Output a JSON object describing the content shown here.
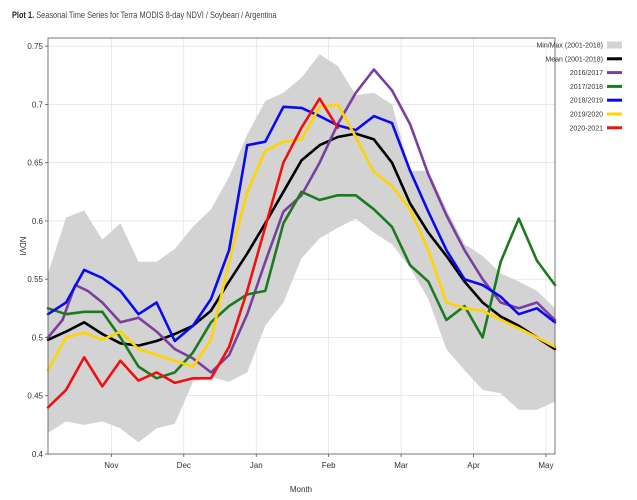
{
  "title": {
    "prefix": "Plot 1.",
    "text": "Seasonal Time Series for Terra MODIS 8-day NDVI / Soybean / Argentina"
  },
  "colors": {
    "band": "#d3d3d3",
    "mean": "#000000",
    "y2016_2017": "#7b3f9e",
    "y2017_2018": "#1e7a1e",
    "y2018_2019": "#0a0aee",
    "y2019_2020": "#ffd400",
    "y2020_2021": "#ee1111"
  },
  "chart_data": {
    "type": "line",
    "title": "Seasonal Time Series for Terra MODIS 8-day NDVI / Soybean / Argentina",
    "xlabel": "Month",
    "ylabel": "NDVI",
    "x_tick_labels": [
      "Nov",
      "Dec",
      "Jan",
      "Feb",
      "Mar",
      "Apr",
      "May"
    ],
    "y_tick_labels": [
      "0.4",
      "0.45",
      "0.5",
      "0.55",
      "0.6",
      "0.65",
      "0.7",
      "0.75"
    ],
    "ylim": [
      0.4,
      0.757
    ],
    "xlim": [
      0,
      28
    ],
    "x_ticks_at": [
      3.5,
      7.5,
      11.5,
      15.5,
      19.5,
      23.5,
      27.5
    ],
    "grid": true,
    "legend_position": "right",
    "band": {
      "name": "Min/Max (2001-2018)",
      "x": [
        0,
        1,
        2,
        3,
        4,
        5,
        6,
        7,
        8,
        9,
        10,
        11,
        12,
        13,
        14,
        15,
        16,
        17,
        18,
        19,
        20,
        21,
        22,
        23,
        24,
        25,
        26,
        27,
        28
      ],
      "min": [
        0.418,
        0.428,
        0.425,
        0.428,
        0.422,
        0.41,
        0.422,
        0.426,
        0.462,
        0.466,
        0.462,
        0.47,
        0.51,
        0.53,
        0.568,
        0.585,
        0.594,
        0.602,
        0.59,
        0.58,
        0.56,
        0.533,
        0.49,
        0.472,
        0.455,
        0.452,
        0.438,
        0.438,
        0.445
      ],
      "max": [
        0.555,
        0.603,
        0.609,
        0.584,
        0.598,
        0.565,
        0.565,
        0.576,
        0.595,
        0.61,
        0.638,
        0.674,
        0.703,
        0.71,
        0.723,
        0.743,
        0.733,
        0.708,
        0.71,
        0.7,
        0.643,
        0.643,
        0.61,
        0.58,
        0.57,
        0.555,
        0.548,
        0.54,
        0.525
      ]
    },
    "series": [
      {
        "name": "Mean (2001-2018)",
        "color_key": "mean",
        "x": [
          0,
          1,
          2,
          3,
          4,
          5,
          6,
          7,
          8,
          9,
          10,
          11,
          12,
          13,
          14,
          15,
          16,
          17,
          18,
          19,
          20,
          21,
          22,
          23,
          24,
          25,
          26,
          27,
          28
        ],
        "values": [
          0.498,
          0.505,
          0.513,
          0.503,
          0.495,
          0.493,
          0.497,
          0.503,
          0.51,
          0.523,
          0.548,
          0.572,
          0.598,
          0.625,
          0.652,
          0.665,
          0.672,
          0.675,
          0.67,
          0.65,
          0.615,
          0.59,
          0.57,
          0.548,
          0.53,
          0.518,
          0.51,
          0.5,
          0.49
        ]
      },
      {
        "name": "2016/2017",
        "color_key": "y2016_2017",
        "x": [
          0,
          0.8,
          1.5,
          2.2,
          3,
          4,
          5,
          6,
          7,
          8,
          9,
          10,
          11,
          12,
          13,
          14,
          15,
          16,
          17,
          18,
          19,
          20,
          21,
          22,
          23,
          24,
          25,
          26,
          27,
          28
        ],
        "values": [
          0.5,
          0.515,
          0.545,
          0.54,
          0.53,
          0.513,
          0.517,
          0.505,
          0.49,
          0.482,
          0.47,
          0.485,
          0.52,
          0.565,
          0.608,
          0.622,
          0.65,
          0.683,
          0.71,
          0.73,
          0.712,
          0.683,
          0.64,
          0.605,
          0.575,
          0.55,
          0.53,
          0.525,
          0.53,
          0.515
        ]
      },
      {
        "name": "2017/2018",
        "color_key": "y2017_2018",
        "x": [
          0,
          1,
          2,
          3,
          4,
          5,
          6,
          7,
          8,
          9,
          10,
          11,
          12,
          13,
          14,
          15,
          16,
          17,
          18,
          19,
          20,
          21,
          22,
          23,
          24,
          25,
          26,
          27,
          28
        ],
        "values": [
          0.525,
          0.52,
          0.522,
          0.522,
          0.5,
          0.475,
          0.465,
          0.47,
          0.487,
          0.513,
          0.527,
          0.537,
          0.54,
          0.598,
          0.625,
          0.618,
          0.622,
          0.622,
          0.61,
          0.595,
          0.562,
          0.548,
          0.515,
          0.527,
          0.5,
          0.565,
          0.602,
          0.566,
          0.545
        ]
      },
      {
        "name": "2018/2019",
        "color_key": "y2018_2019",
        "x": [
          0,
          1,
          2,
          3,
          4,
          5,
          6,
          7,
          8,
          9,
          10,
          11,
          12,
          13,
          14,
          15,
          16,
          17,
          18,
          19,
          20,
          21,
          22,
          23,
          24,
          25,
          26,
          27,
          28
        ],
        "values": [
          0.52,
          0.53,
          0.558,
          0.551,
          0.54,
          0.52,
          0.53,
          0.497,
          0.51,
          0.533,
          0.575,
          0.665,
          0.668,
          0.698,
          0.697,
          0.69,
          0.682,
          0.678,
          0.69,
          0.684,
          0.643,
          0.608,
          0.575,
          0.55,
          0.545,
          0.535,
          0.52,
          0.525,
          0.513
        ]
      },
      {
        "name": "2019/2020",
        "color_key": "y2019_2020",
        "x": [
          0,
          1,
          2,
          3,
          4,
          5,
          6,
          7,
          8,
          9,
          10,
          11,
          12,
          13,
          14,
          15,
          16,
          17,
          18,
          19,
          20,
          21,
          22,
          23,
          24,
          25,
          26,
          27,
          28
        ],
        "values": [
          0.472,
          0.5,
          0.504,
          0.498,
          0.505,
          0.49,
          0.485,
          0.48,
          0.475,
          0.498,
          0.565,
          0.625,
          0.66,
          0.668,
          0.67,
          0.698,
          0.7,
          0.672,
          0.642,
          0.63,
          0.61,
          0.575,
          0.53,
          0.525,
          0.523,
          0.515,
          0.508,
          0.5,
          0.492
        ]
      },
      {
        "name": "2020-2021",
        "color_key": "y2020_2021",
        "x": [
          0,
          1,
          2,
          3,
          4,
          5,
          6,
          7,
          8,
          9,
          10,
          11,
          12,
          13,
          14,
          15,
          16
        ],
        "values": [
          0.44,
          0.455,
          0.483,
          0.458,
          0.48,
          0.463,
          0.47,
          0.461,
          0.465,
          0.465,
          0.492,
          0.54,
          0.595,
          0.65,
          0.68,
          0.705,
          0.68
        ]
      }
    ]
  }
}
